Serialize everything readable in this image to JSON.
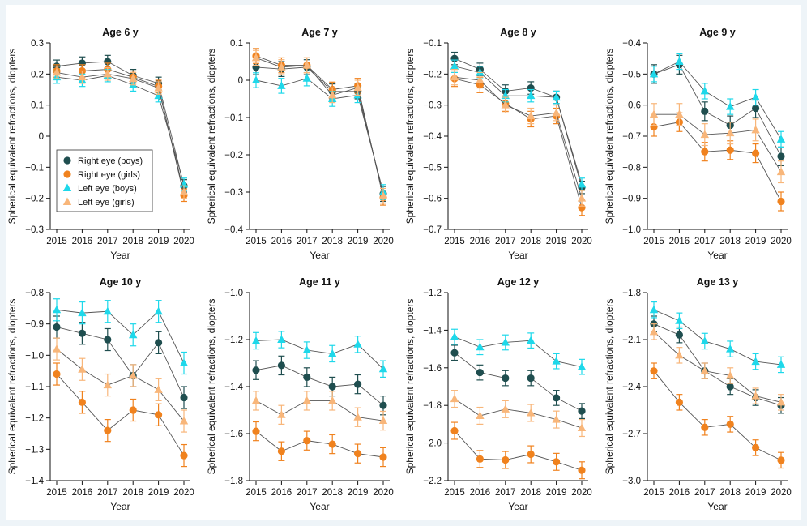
{
  "colors": {
    "right_boys": "#1f4e4f",
    "right_girls": "#f0821e",
    "left_boys": "#1ed8ea",
    "left_girls": "#f8b67a",
    "line": "#555555",
    "background": "#eef4f8"
  },
  "legend": {
    "items": [
      {
        "label": "Right eye (boys)",
        "marker": "circle",
        "color": "#1f4e4f"
      },
      {
        "label": "Right eye (girls)",
        "marker": "circle",
        "color": "#f0821e"
      },
      {
        "label": "Left eye (boys)",
        "marker": "triangle",
        "color": "#1ed8ea"
      },
      {
        "label": "Left eye (girls)",
        "marker": "triangle",
        "color": "#f8b67a"
      }
    ],
    "placement": "inside first panel, lower-left"
  },
  "chart_data": [
    {
      "type": "line",
      "title": "Age 6 y",
      "xlabel": "Year",
      "ylabel": "Spherical equivalent refractions, diopters",
      "x": [
        2015,
        2016,
        2017,
        2018,
        2019,
        2020
      ],
      "ylim": [
        -0.3,
        0.3
      ],
      "yticks": [
        -0.3,
        -0.2,
        -0.1,
        0,
        0.1,
        0.2,
        0.3
      ],
      "tick_labels": [
        "−0.3",
        "−0.2",
        "−0.1",
        "0",
        "0.1",
        "0.2",
        "0.3"
      ],
      "series": [
        {
          "name": "Right eye (boys)",
          "values": [
            0.225,
            0.235,
            0.24,
            0.195,
            0.17,
            -0.16
          ],
          "err": 0.02
        },
        {
          "name": "Right eye (girls)",
          "values": [
            0.21,
            0.21,
            0.215,
            0.19,
            0.16,
            -0.19
          ],
          "err": 0.02
        },
        {
          "name": "Left eye (boys)",
          "values": [
            0.19,
            0.18,
            0.195,
            0.165,
            0.13,
            -0.155
          ],
          "err": 0.02
        },
        {
          "name": "Left eye (girls)",
          "values": [
            0.205,
            0.19,
            0.2,
            0.185,
            0.155,
            -0.18
          ],
          "err": 0.02
        }
      ]
    },
    {
      "type": "line",
      "title": "Age 7 y",
      "xlabel": "Year",
      "ylabel": "Spherical equivalent refractions, diopters",
      "x": [
        2015,
        2016,
        2017,
        2018,
        2019,
        2020
      ],
      "ylim": [
        -0.4,
        0.1
      ],
      "yticks": [
        -0.4,
        -0.3,
        -0.2,
        -0.1,
        0,
        0.1
      ],
      "tick_labels": [
        "−0.4",
        "−0.3",
        "−0.2",
        "−0.1",
        "0",
        "0.1"
      ],
      "series": [
        {
          "name": "Right eye (boys)",
          "values": [
            0.035,
            0.03,
            0.035,
            -0.03,
            -0.03,
            -0.305
          ],
          "err": 0.02
        },
        {
          "name": "Right eye (girls)",
          "values": [
            0.065,
            0.04,
            0.04,
            -0.025,
            -0.015,
            -0.315
          ],
          "err": 0.02
        },
        {
          "name": "Left eye (boys)",
          "values": [
            0.0,
            -0.015,
            0.005,
            -0.05,
            -0.04,
            -0.3
          ],
          "err": 0.02
        },
        {
          "name": "Left eye (girls)",
          "values": [
            0.06,
            0.035,
            0.04,
            -0.04,
            -0.02,
            -0.31
          ],
          "err": 0.02
        }
      ]
    },
    {
      "type": "line",
      "title": "Age 8 y",
      "xlabel": "Year",
      "ylabel": "Spherical equivalent refractions, diopters",
      "x": [
        2015,
        2016,
        2017,
        2018,
        2019,
        2020
      ],
      "ylim": [
        -0.7,
        -0.1
      ],
      "yticks": [
        -0.7,
        -0.6,
        -0.5,
        -0.4,
        -0.3,
        -0.2,
        -0.1
      ],
      "tick_labels": [
        "−0.7",
        "−0.6",
        "−0.5",
        "−0.4",
        "−0.3",
        "−0.2",
        "−0.1"
      ],
      "series": [
        {
          "name": "Right eye (boys)",
          "values": [
            -0.15,
            -0.185,
            -0.255,
            -0.245,
            -0.275,
            -0.565
          ],
          "err": 0.02
        },
        {
          "name": "Right eye (girls)",
          "values": [
            -0.215,
            -0.235,
            -0.295,
            -0.345,
            -0.335,
            -0.63
          ],
          "err": 0.025
        },
        {
          "name": "Left eye (boys)",
          "values": [
            -0.175,
            -0.195,
            -0.27,
            -0.27,
            -0.275,
            -0.555
          ],
          "err": 0.02
        },
        {
          "name": "Left eye (girls)",
          "values": [
            -0.21,
            -0.22,
            -0.3,
            -0.335,
            -0.325,
            -0.6
          ],
          "err": 0.025
        }
      ]
    },
    {
      "type": "line",
      "title": "Age 9 y",
      "xlabel": "Year",
      "ylabel": "Spherical equivalent refractions, diopters",
      "x": [
        2015,
        2016,
        2017,
        2018,
        2019,
        2020
      ],
      "ylim": [
        -1.0,
        -0.4
      ],
      "yticks": [
        -1.0,
        -0.9,
        -0.8,
        -0.7,
        -0.6,
        -0.5,
        -0.4
      ],
      "tick_labels": [
        "−1.0",
        "−0.9",
        "−0.8",
        "−0.7",
        "−0.6",
        "−0.5",
        "−0.4"
      ],
      "series": [
        {
          "name": "Right eye (boys)",
          "values": [
            -0.5,
            -0.47,
            -0.62,
            -0.665,
            -0.61,
            -0.765
          ],
          "err": 0.03
        },
        {
          "name": "Right eye (girls)",
          "values": [
            -0.67,
            -0.655,
            -0.75,
            -0.745,
            -0.755,
            -0.91
          ],
          "err": 0.03
        },
        {
          "name": "Left eye (boys)",
          "values": [
            -0.5,
            -0.46,
            -0.555,
            -0.605,
            -0.575,
            -0.71
          ],
          "err": 0.025
        },
        {
          "name": "Left eye (girls)",
          "values": [
            -0.63,
            -0.63,
            -0.695,
            -0.69,
            -0.68,
            -0.815
          ],
          "err": 0.035
        }
      ]
    },
    {
      "type": "line",
      "title": "Age 10 y",
      "xlabel": "Year",
      "ylabel": "Spherical equivalent refractions, diopters",
      "x": [
        2015,
        2016,
        2017,
        2018,
        2019,
        2020
      ],
      "ylim": [
        -1.4,
        -0.8
      ],
      "yticks": [
        -1.4,
        -1.3,
        -1.2,
        -1.1,
        -1.0,
        -0.9,
        -0.8
      ],
      "tick_labels": [
        "−1.4",
        "−1.3",
        "−1.2",
        "−1.1",
        "−1.0",
        "−0.9",
        "−0.8"
      ],
      "series": [
        {
          "name": "Right eye (boys)",
          "values": [
            -0.91,
            -0.93,
            -0.95,
            -1.065,
            -0.96,
            -1.135
          ],
          "err": 0.035
        },
        {
          "name": "Right eye (girls)",
          "values": [
            -1.06,
            -1.15,
            -1.24,
            -1.175,
            -1.19,
            -1.32
          ],
          "err": 0.035
        },
        {
          "name": "Left eye (boys)",
          "values": [
            -0.855,
            -0.865,
            -0.86,
            -0.935,
            -0.86,
            -1.025
          ],
          "err": 0.035
        },
        {
          "name": "Left eye (girls)",
          "values": [
            -0.98,
            -1.045,
            -1.095,
            -1.065,
            -1.11,
            -1.21
          ],
          "err": 0.035
        }
      ]
    },
    {
      "type": "line",
      "title": "Age 11 y",
      "xlabel": "Year",
      "ylabel": "Spherical equivalent refractions, diopters",
      "x": [
        2015,
        2016,
        2017,
        2018,
        2019,
        2020
      ],
      "ylim": [
        -1.8,
        -1.0
      ],
      "yticks": [
        -1.8,
        -1.6,
        -1.4,
        -1.2,
        -1.0
      ],
      "tick_labels": [
        "−1.8",
        "−1.6",
        "−1.4",
        "−1.2",
        "−1.0"
      ],
      "series": [
        {
          "name": "Right eye (boys)",
          "values": [
            -1.33,
            -1.31,
            -1.36,
            -1.4,
            -1.39,
            -1.48
          ],
          "err": 0.04
        },
        {
          "name": "Right eye (girls)",
          "values": [
            -1.59,
            -1.675,
            -1.63,
            -1.645,
            -1.685,
            -1.7
          ],
          "err": 0.04
        },
        {
          "name": "Left eye (boys)",
          "values": [
            -1.205,
            -1.2,
            -1.245,
            -1.26,
            -1.22,
            -1.325
          ],
          "err": 0.035
        },
        {
          "name": "Left eye (girls)",
          "values": [
            -1.46,
            -1.52,
            -1.46,
            -1.46,
            -1.53,
            -1.545
          ],
          "err": 0.04
        }
      ]
    },
    {
      "type": "line",
      "title": "Age 12 y",
      "xlabel": "Year",
      "ylabel": "Spherical equivalent refractions, diopters",
      "x": [
        2015,
        2016,
        2017,
        2018,
        2019,
        2020
      ],
      "ylim": [
        -2.2,
        -1.2
      ],
      "yticks": [
        -2.2,
        -2.0,
        -1.8,
        -1.6,
        -1.4,
        -1.2
      ],
      "tick_labels": [
        "−2.2",
        "−2.0",
        "−1.8",
        "−1.6",
        "−1.4",
        "−1.2"
      ],
      "series": [
        {
          "name": "Right eye (boys)",
          "values": [
            -1.52,
            -1.625,
            -1.655,
            -1.655,
            -1.76,
            -1.83
          ],
          "err": 0.04
        },
        {
          "name": "Right eye (girls)",
          "values": [
            -1.935,
            -2.085,
            -2.09,
            -2.06,
            -2.1,
            -2.145
          ],
          "err": 0.045
        },
        {
          "name": "Left eye (boys)",
          "values": [
            -1.435,
            -1.49,
            -1.465,
            -1.455,
            -1.565,
            -1.595
          ],
          "err": 0.04
        },
        {
          "name": "Left eye (girls)",
          "values": [
            -1.765,
            -1.855,
            -1.82,
            -1.84,
            -1.875,
            -1.92
          ],
          "err": 0.045
        }
      ]
    },
    {
      "type": "line",
      "title": "Age 13 y",
      "xlabel": "Year",
      "ylabel": "Spherical equivalent refractions, diopters",
      "x": [
        2015,
        2016,
        2017,
        2018,
        2019,
        2020
      ],
      "ylim": [
        -3.0,
        -1.8
      ],
      "yticks": [
        -3.0,
        -2.7,
        -2.4,
        -2.1,
        -1.8
      ],
      "tick_labels": [
        "−3.0",
        "−2.7",
        "−2.4",
        "−2.1",
        "−1.8"
      ],
      "series": [
        {
          "name": "Right eye (boys)",
          "values": [
            -2.0,
            -2.07,
            -2.3,
            -2.4,
            -2.47,
            -2.52
          ],
          "err": 0.05
        },
        {
          "name": "Right eye (girls)",
          "values": [
            -2.3,
            -2.5,
            -2.66,
            -2.64,
            -2.79,
            -2.87
          ],
          "err": 0.05
        },
        {
          "name": "Left eye (boys)",
          "values": [
            -1.91,
            -1.98,
            -2.11,
            -2.16,
            -2.24,
            -2.26
          ],
          "err": 0.05
        },
        {
          "name": "Left eye (girls)",
          "values": [
            -2.05,
            -2.2,
            -2.3,
            -2.33,
            -2.46,
            -2.5
          ],
          "err": 0.05
        }
      ]
    }
  ]
}
